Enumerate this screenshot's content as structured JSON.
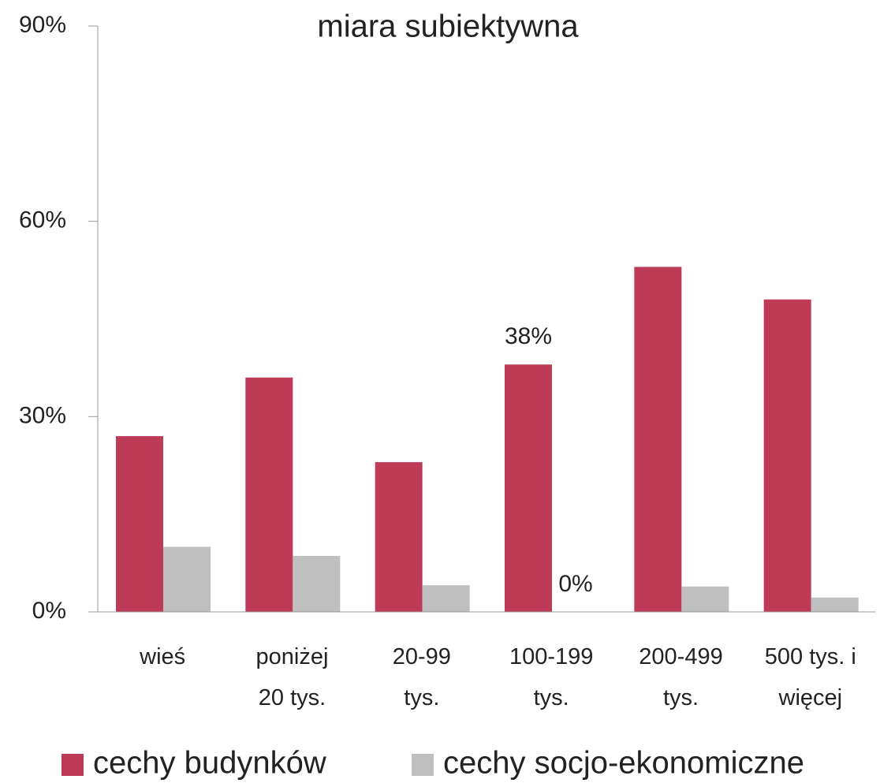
{
  "chart_data": {
    "type": "bar",
    "title": "miara subiektywna",
    "categories": [
      "wieś",
      "poniżej\n20 tys.",
      "20-99\ntys.",
      "100-199\ntys.",
      "200-499\ntys.",
      "500 tys. i\nwięcej"
    ],
    "series": [
      {
        "name": "cechy budynków",
        "color": "#be3b58",
        "values": [
          27,
          36,
          23,
          38,
          53,
          48
        ],
        "value_labels": [
          null,
          null,
          null,
          "38%",
          null,
          null
        ]
      },
      {
        "name": "cechy socjo-ekonomiczne",
        "color": "#bfbfbf",
        "values": [
          10,
          8.6,
          4.1,
          0,
          3.9,
          2.2
        ],
        "value_labels": [
          null,
          null,
          null,
          "0%",
          null,
          null
        ]
      }
    ],
    "ylim": [
      0,
      90
    ],
    "yticks": [
      {
        "value": 0,
        "label": "0%"
      },
      {
        "value": 30,
        "label": "30%"
      },
      {
        "value": 60,
        "label": "60%"
      },
      {
        "value": 90,
        "label": "90%"
      }
    ],
    "grid": false,
    "legend": "bottom"
  }
}
